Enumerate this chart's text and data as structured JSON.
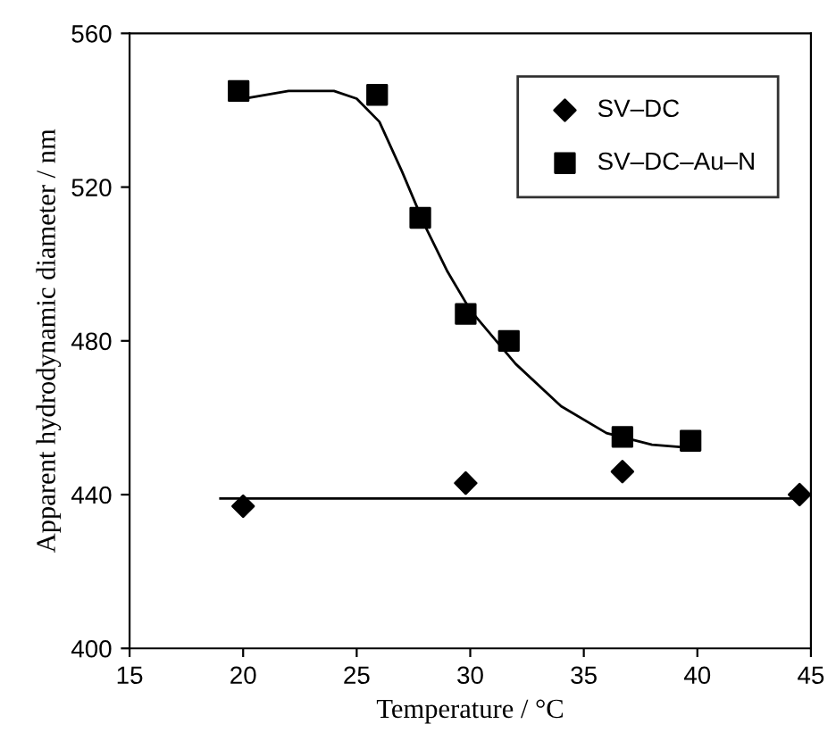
{
  "chart_data": {
    "type": "scatter",
    "xlabel": "Temperature / °C",
    "ylabel": "Apparent hydrodynamic diameter / nm",
    "xlim": [
      15,
      45
    ],
    "xticks": [
      15,
      20,
      25,
      30,
      35,
      40,
      45
    ],
    "ylim": [
      400,
      560
    ],
    "yticks": [
      400,
      440,
      480,
      520,
      560
    ],
    "grid": false,
    "legend": "top right",
    "series": [
      {
        "name": "SV–DC",
        "color": "#000000",
        "marker": "diamond",
        "x": [
          20,
          29.8,
          36.7,
          44.5
        ],
        "values": [
          437,
          443,
          446,
          440
        ]
      },
      {
        "name": "SV–DC–Au–N",
        "color": "#000000",
        "marker": "square",
        "x": [
          19.8,
          25.9,
          27.8,
          29.8,
          31.7,
          36.7,
          39.7
        ],
        "values": [
          545,
          544,
          512,
          487,
          480,
          455,
          454
        ]
      },
      {
        "type": "line",
        "color": "#000000",
        "marker": "none",
        "x": [
          19,
          44.5
        ],
        "values": [
          439,
          439
        ]
      },
      {
        "type": "line",
        "color": "#000000",
        "marker": "none",
        "x": [
          20,
          22,
          24,
          25,
          26,
          27,
          28,
          29,
          30,
          32,
          34,
          36,
          38,
          40
        ],
        "values": [
          543,
          545,
          545,
          543,
          537,
          524,
          510,
          498,
          488,
          474,
          463,
          456,
          453,
          452
        ]
      }
    ]
  }
}
